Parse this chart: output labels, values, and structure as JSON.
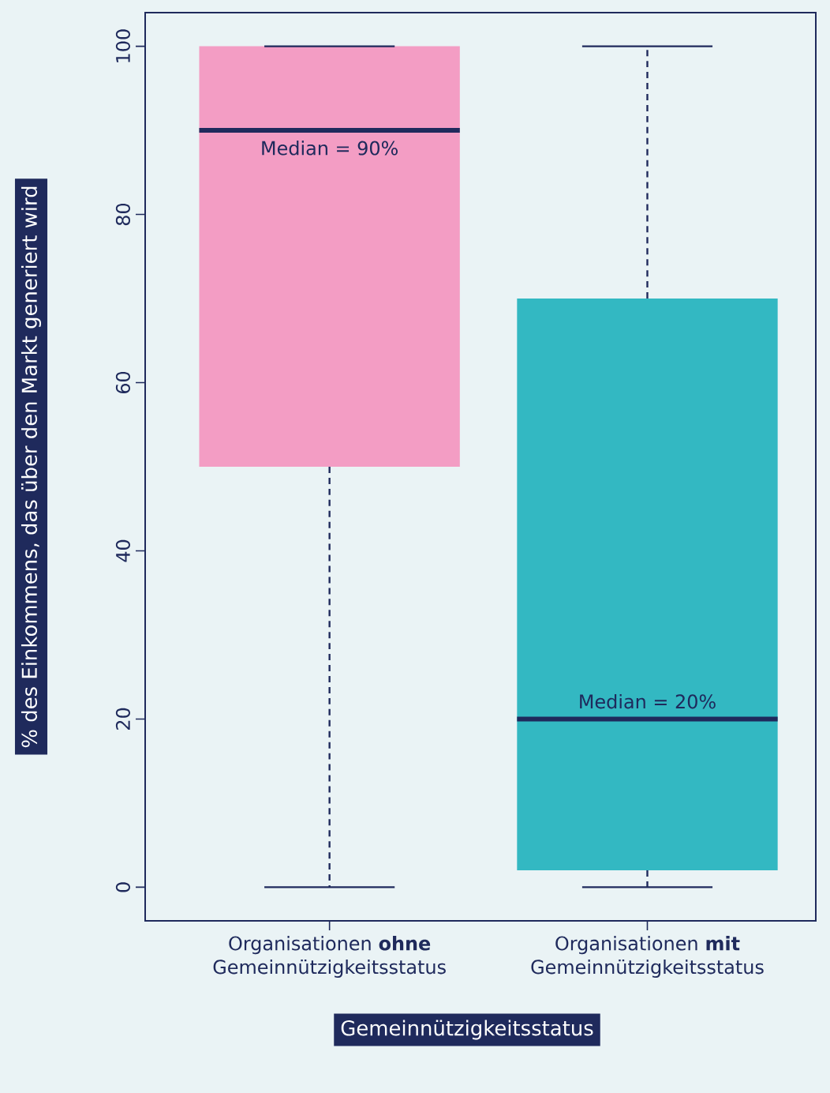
{
  "chart_data": {
    "type": "box",
    "xlabel": "Gemeinnützigkeitsstatus",
    "ylabel": "% des Einkommens, das über den Markt generiert wird",
    "categories": [
      "Organisationen **ohne** Gemeinnützigkeitsstatus",
      "Organisationen **mit** Gemeinnützigkeitsstatus"
    ],
    "colors": [
      "#f39dc4",
      "#33b8c2"
    ],
    "boxes": [
      {
        "low": 0,
        "q1": 50,
        "median": 90,
        "q3": 100,
        "high": 100
      },
      {
        "low": 0,
        "q1": 2,
        "median": 20,
        "q3": 70,
        "high": 100
      }
    ],
    "ylim": [
      -4,
      104
    ],
    "yticks": [
      0,
      20,
      40,
      60,
      80,
      100
    ],
    "annotations": [
      {
        "text": "Median = 90%",
        "x": "Organisationen **ohne** Gemeinnützigkeitsstatus",
        "y": 90
      },
      {
        "text": "Median = 20%",
        "x": "Organisationen **mit** Gemeinnützigkeitsstatus",
        "y": 20
      }
    ]
  }
}
